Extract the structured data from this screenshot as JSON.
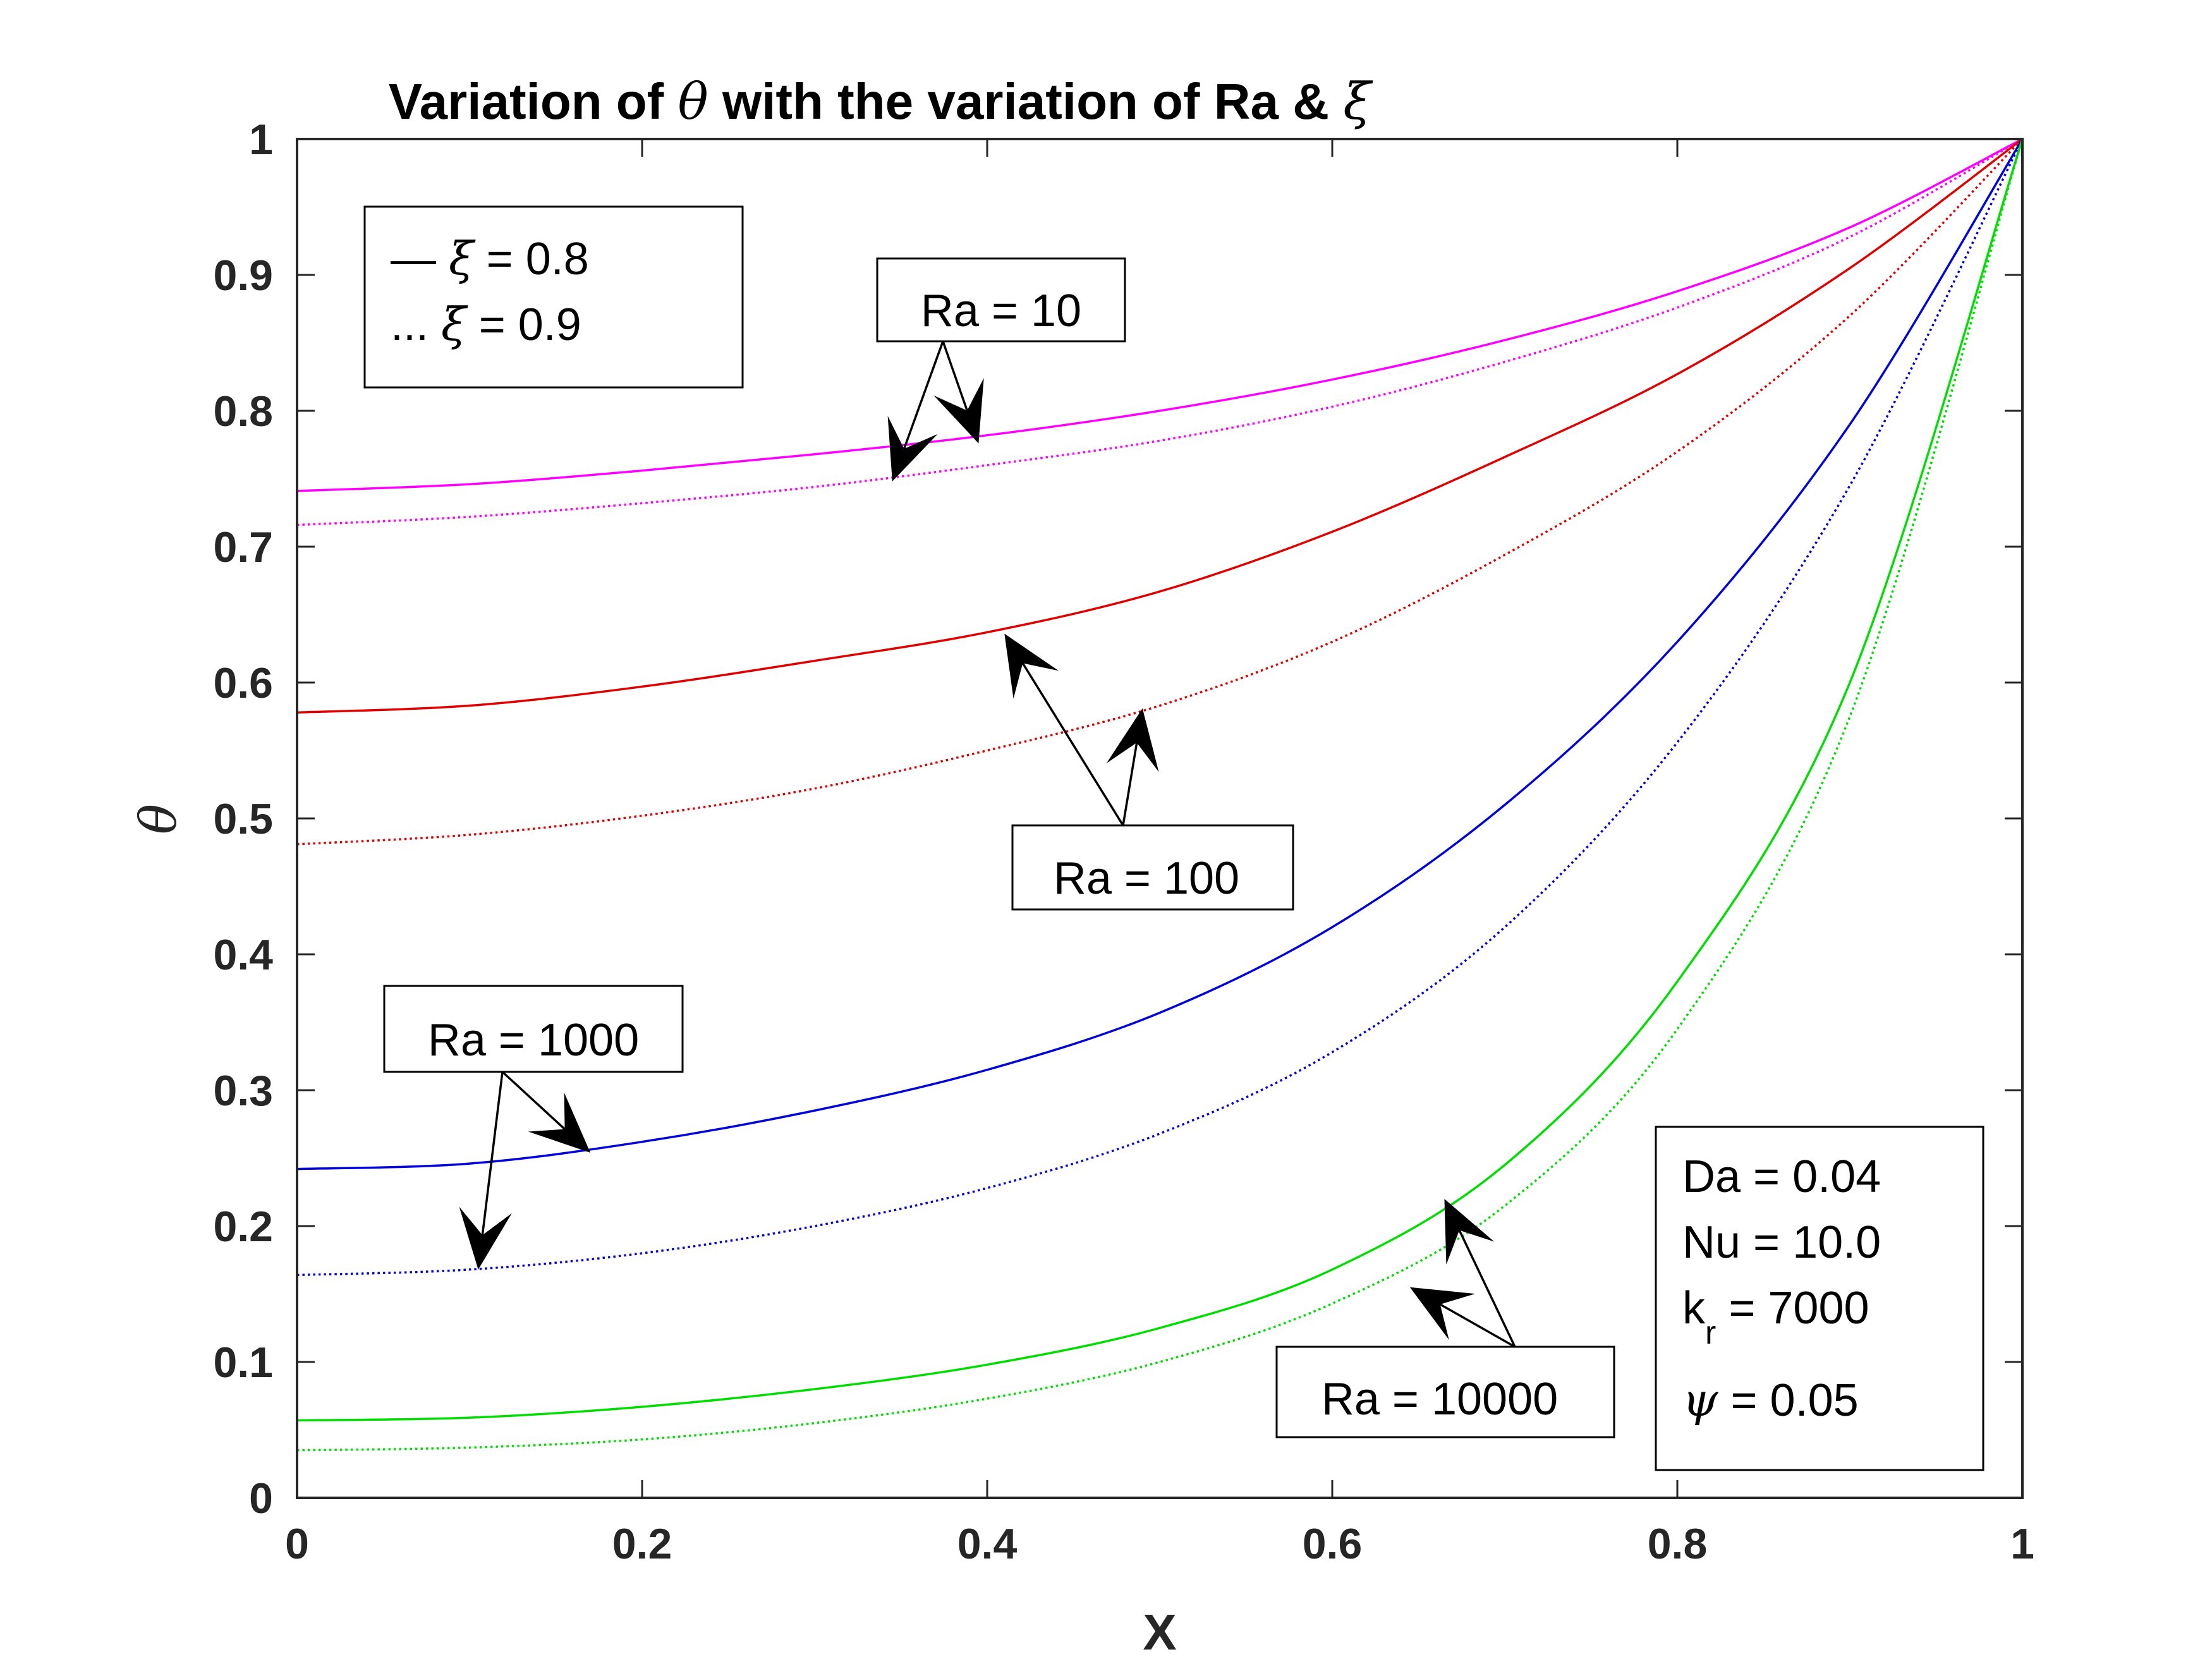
{
  "chart_data": {
    "type": "line",
    "title": {
      "prefix": "Variation of ",
      "sym1": "θ",
      "middle": " with the variation of Ra & ",
      "sym2": "ξ"
    },
    "xlabel": "X",
    "ylabel": "θ",
    "xlim": [
      0,
      1
    ],
    "ylim": [
      0,
      1
    ],
    "xticks": [
      0,
      0.2,
      0.4,
      0.6,
      0.8,
      1
    ],
    "xtick_labels": [
      "0",
      "0.2",
      "0.4",
      "0.6",
      "0.8",
      "1"
    ],
    "yticks": [
      0,
      0.1,
      0.2,
      0.3,
      0.4,
      0.5,
      0.6,
      0.7,
      0.8,
      0.9,
      1
    ],
    "ytick_labels": [
      "0",
      "0.1",
      "0.2",
      "0.3",
      "0.4",
      "0.5",
      "0.6",
      "0.7",
      "0.8",
      "0.9",
      "1"
    ],
    "grid": false,
    "legend": {
      "placement": "top-left",
      "entries": [
        {
          "marker": "—",
          "symbol": "ξ",
          "text": " = 0.8",
          "style": "solid"
        },
        {
          "marker": "...",
          "symbol": "ξ",
          "text": " = 0.9",
          "style": "dotted"
        }
      ]
    },
    "series": [
      {
        "ra": "Ra = 10",
        "xi": 0.8,
        "style": "solid",
        "color": "#ff00ff",
        "x": [
          0,
          0.1,
          0.2,
          0.3,
          0.4,
          0.5,
          0.6,
          0.7,
          0.8,
          0.9,
          1.0
        ],
        "y": [
          0.741,
          0.746,
          0.756,
          0.768,
          0.782,
          0.8,
          0.823,
          0.852,
          0.888,
          0.935,
          1.0
        ]
      },
      {
        "ra": "Ra = 10",
        "xi": 0.9,
        "style": "dotted",
        "color": "#ff00ff",
        "x": [
          0,
          0.1,
          0.2,
          0.3,
          0.4,
          0.5,
          0.6,
          0.7,
          0.8,
          0.9,
          1.0
        ],
        "y": [
          0.716,
          0.722,
          0.732,
          0.744,
          0.76,
          0.778,
          0.803,
          0.836,
          0.876,
          0.928,
          1.0
        ]
      },
      {
        "ra": "Ra = 100",
        "xi": 0.8,
        "style": "solid",
        "color": "#e00000",
        "x": [
          0,
          0.1,
          0.2,
          0.3,
          0.4,
          0.5,
          0.6,
          0.7,
          0.8,
          0.9,
          1.0
        ],
        "y": [
          0.578,
          0.583,
          0.597,
          0.616,
          0.637,
          0.667,
          0.711,
          0.766,
          0.827,
          0.905,
          1.0
        ]
      },
      {
        "ra": "Ra = 100",
        "xi": 0.9,
        "style": "dotted",
        "color": "#e00000",
        "x": [
          0,
          0.1,
          0.2,
          0.3,
          0.4,
          0.5,
          0.6,
          0.7,
          0.8,
          0.9,
          1.0
        ],
        "y": [
          0.481,
          0.488,
          0.502,
          0.522,
          0.55,
          0.583,
          0.63,
          0.694,
          0.77,
          0.87,
          1.0
        ]
      },
      {
        "ra": "Ra = 1000",
        "xi": 0.8,
        "style": "solid",
        "color": "#0000dd",
        "x": [
          0,
          0.1,
          0.2,
          0.3,
          0.4,
          0.5,
          0.6,
          0.7,
          0.8,
          0.9,
          1.0
        ],
        "y": [
          0.242,
          0.246,
          0.262,
          0.285,
          0.315,
          0.357,
          0.42,
          0.51,
          0.63,
          0.79,
          1.0
        ]
      },
      {
        "ra": "Ra = 1000",
        "xi": 0.9,
        "style": "dotted",
        "color": "#0000dd",
        "x": [
          0,
          0.1,
          0.2,
          0.3,
          0.4,
          0.5,
          0.6,
          0.7,
          0.8,
          0.9,
          1.0
        ],
        "y": [
          0.164,
          0.168,
          0.18,
          0.2,
          0.228,
          0.268,
          0.328,
          0.42,
          0.556,
          0.745,
          1.0
        ]
      },
      {
        "ra": "Ra = 10000",
        "xi": 0.8,
        "style": "solid",
        "color": "#00dd00",
        "x": [
          0,
          0.1,
          0.2,
          0.3,
          0.4,
          0.5,
          0.6,
          0.7,
          0.8,
          0.9,
          1.0
        ],
        "y": [
          0.057,
          0.059,
          0.067,
          0.08,
          0.098,
          0.125,
          0.168,
          0.245,
          0.38,
          0.6,
          1.0
        ]
      },
      {
        "ra": "Ra = 10000",
        "xi": 0.9,
        "style": "dotted",
        "color": "#00dd00",
        "x": [
          0,
          0.1,
          0.2,
          0.3,
          0.4,
          0.5,
          0.6,
          0.7,
          0.8,
          0.9,
          1.0
        ],
        "y": [
          0.035,
          0.037,
          0.043,
          0.055,
          0.073,
          0.1,
          0.143,
          0.215,
          0.345,
          0.575,
          1.0
        ]
      }
    ],
    "annotations": [
      {
        "text": "Ra = 10",
        "targets": [
          [
            0.345,
            0.748
          ],
          [
            0.395,
            0.776
          ]
        ]
      },
      {
        "text": "Ra = 100",
        "targets": [
          [
            0.41,
            0.636
          ],
          [
            0.49,
            0.581
          ]
        ]
      },
      {
        "text": "Ra = 1000",
        "targets": [
          [
            0.17,
            0.254
          ],
          [
            0.105,
            0.168
          ]
        ]
      },
      {
        "text": "Ra = 10000",
        "targets": [
          [
            0.665,
            0.22
          ],
          [
            0.645,
            0.155
          ]
        ]
      }
    ],
    "params": [
      {
        "text": "Da = 0.04"
      },
      {
        "text": "Nu = 10.0"
      },
      {
        "base": "k",
        "sub": "r",
        "text": " = 7000"
      },
      {
        "symbol": "ψ",
        "text": " = 0.05"
      }
    ]
  }
}
